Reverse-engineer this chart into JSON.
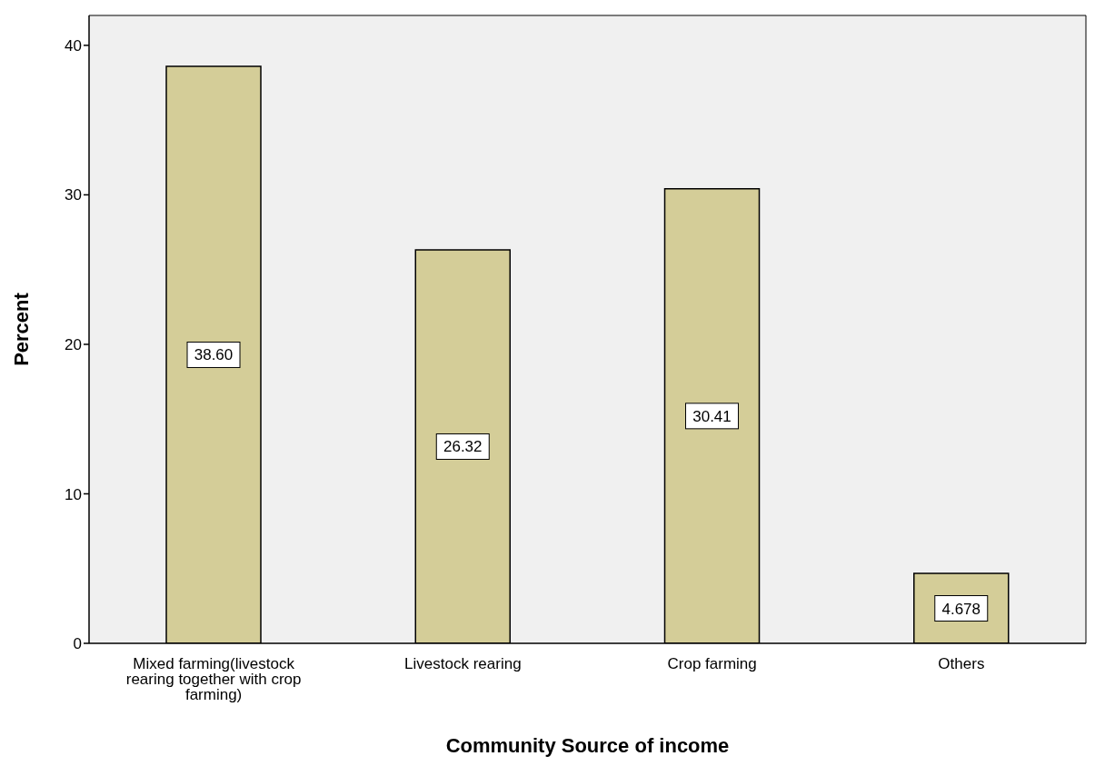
{
  "chart_data": {
    "type": "bar",
    "xlabel": "Community  Source of income",
    "ylabel": "Percent",
    "categories": [
      "Mixed farming(livestock rearing together with crop farming)",
      "Livestock rearing",
      "Crop farming",
      "Others"
    ],
    "values": [
      38.6,
      26.32,
      30.41,
      4.678
    ],
    "value_labels": [
      "38.60",
      "26.32",
      "30.41",
      "4.678"
    ],
    "color": "#d4cd98",
    "ylim": [
      0,
      42
    ],
    "yticks": [
      0,
      10,
      20,
      30,
      40
    ],
    "grid": false,
    "legend": false
  }
}
